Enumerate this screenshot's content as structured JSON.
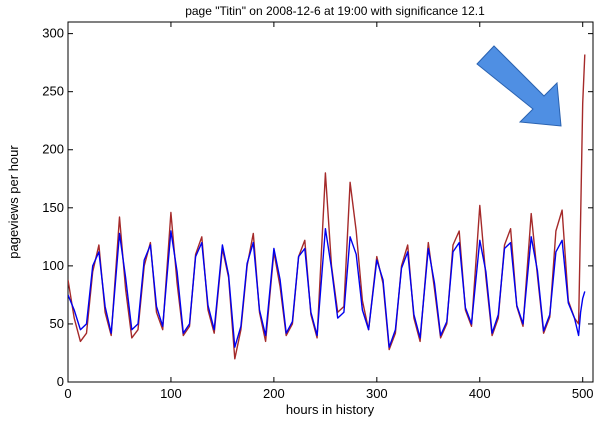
{
  "chart_data": {
    "type": "line",
    "title": "page \"Titin\" on 2008-12-6 at 19:00 with significance 12.1",
    "xlabel": "hours in history",
    "ylabel": "pageviews per hour",
    "xlim": [
      0,
      510
    ],
    "ylim": [
      0,
      310
    ],
    "xticks": [
      0,
      100,
      200,
      300,
      400,
      500
    ],
    "yticks": [
      0,
      50,
      100,
      150,
      200,
      250,
      300
    ],
    "xtick_labels": [
      "0",
      "100",
      "200",
      "300",
      "400",
      "500"
    ],
    "ytick_labels": [
      "0",
      "50",
      "100",
      "150",
      "200",
      "250",
      "300"
    ],
    "grid": false,
    "legend": "none",
    "annotation": {
      "type": "arrow",
      "points_to": [
        496,
        225
      ],
      "color": "#4f8fe3"
    },
    "series": [
      {
        "color": "#a52a2a",
        "x": [
          0,
          6,
          12,
          18,
          24,
          30,
          36,
          42,
          50,
          56,
          62,
          68,
          74,
          80,
          86,
          92,
          100,
          106,
          112,
          118,
          124,
          130,
          136,
          142,
          150,
          156,
          162,
          168,
          174,
          180,
          186,
          192,
          200,
          206,
          212,
          218,
          224,
          230,
          236,
          242,
          250,
          256,
          262,
          268,
          274,
          280,
          286,
          292,
          300,
          306,
          312,
          318,
          324,
          330,
          336,
          342,
          350,
          356,
          362,
          368,
          374,
          380,
          386,
          392,
          400,
          406,
          412,
          418,
          424,
          430,
          436,
          442,
          450,
          456,
          462,
          468,
          474,
          480,
          486,
          492,
          496,
          498,
          500,
          502
        ],
        "y": [
          88,
          55,
          35,
          42,
          95,
          118,
          60,
          40,
          142,
          80,
          38,
          45,
          100,
          120,
          60,
          45,
          146,
          85,
          40,
          48,
          110,
          125,
          62,
          42,
          115,
          90,
          20,
          45,
          100,
          128,
          60,
          35,
          112,
          82,
          40,
          50,
          108,
          122,
          58,
          38,
          180,
          100,
          60,
          65,
          172,
          130,
          70,
          45,
          108,
          85,
          28,
          42,
          100,
          118,
          55,
          35,
          120,
          80,
          38,
          50,
          118,
          130,
          62,
          48,
          152,
          90,
          40,
          55,
          118,
          132,
          65,
          48,
          145,
          92,
          42,
          56,
          130,
          148,
          70,
          55,
          50,
          140,
          240,
          282
        ]
      },
      {
        "color": "#0000ee",
        "x": [
          0,
          6,
          12,
          18,
          24,
          30,
          36,
          42,
          50,
          56,
          62,
          68,
          74,
          80,
          86,
          92,
          100,
          106,
          112,
          118,
          124,
          130,
          136,
          142,
          150,
          156,
          162,
          168,
          174,
          180,
          186,
          192,
          200,
          206,
          212,
          218,
          224,
          230,
          236,
          242,
          250,
          256,
          262,
          268,
          274,
          280,
          286,
          292,
          300,
          306,
          312,
          318,
          324,
          330,
          336,
          342,
          350,
          356,
          362,
          368,
          374,
          380,
          386,
          392,
          400,
          406,
          412,
          418,
          424,
          430,
          436,
          442,
          450,
          456,
          462,
          468,
          474,
          480,
          486,
          492,
          496,
          498,
          500,
          502
        ],
        "y": [
          75,
          62,
          45,
          50,
          100,
          112,
          65,
          42,
          128,
          90,
          45,
          50,
          105,
          118,
          65,
          48,
          130,
          95,
          42,
          50,
          108,
          120,
          66,
          45,
          118,
          92,
          30,
          48,
          102,
          120,
          62,
          40,
          115,
          88,
          42,
          52,
          108,
          115,
          60,
          40,
          132,
          98,
          55,
          60,
          125,
          110,
          62,
          45,
          105,
          88,
          30,
          45,
          98,
          112,
          58,
          38,
          115,
          85,
          40,
          52,
          112,
          120,
          64,
          50,
          122,
          95,
          42,
          58,
          115,
          120,
          66,
          50,
          125,
          96,
          44,
          58,
          112,
          122,
          68,
          55,
          40,
          60,
          72,
          78
        ]
      }
    ]
  }
}
